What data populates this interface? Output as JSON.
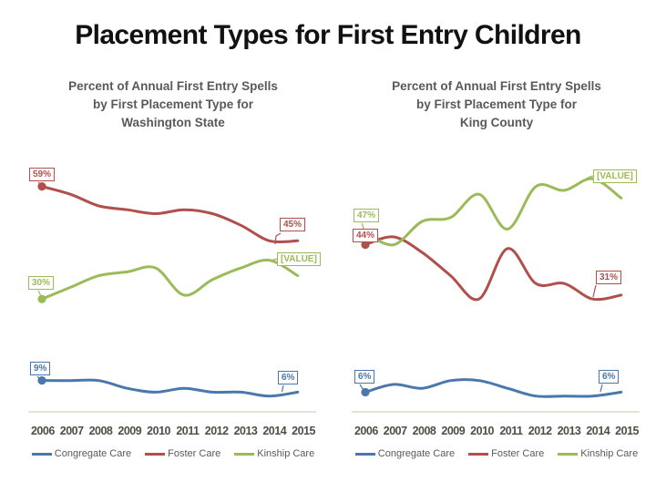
{
  "slide_title": "Placement Types for First Entry Children",
  "colors": {
    "congregate": "#4a77ac",
    "foster": "#b04f4b",
    "kinship": "#9bbb59",
    "axis_line": "#cac4b3",
    "title_text": "#111111",
    "chart_title_text": "#595959"
  },
  "chart_data": [
    {
      "type": "line",
      "title": "Percent of Annual First Entry Spells by First Placement Type for Washington State",
      "title_lines": [
        "Percent of Annual First Entry Spells",
        "by First Placement Type for",
        "Washington State"
      ],
      "categories": [
        "2006",
        "2007",
        "2008",
        "2009",
        "2010",
        "2011",
        "2012",
        "2013",
        "2014",
        "2015"
      ],
      "ylim": [
        0,
        64
      ],
      "grid": false,
      "legend_position": "bottom",
      "series": [
        {
          "name": "Congregate Care",
          "key": "congregate",
          "values": [
            9,
            9,
            9,
            7,
            6,
            7,
            6,
            6,
            5,
            6
          ]
        },
        {
          "name": "Foster Care",
          "key": "foster",
          "values": [
            59,
            57,
            54,
            53,
            52,
            53,
            52,
            49,
            45,
            45
          ]
        },
        {
          "name": "Kinship Care",
          "key": "kinship",
          "values": [
            30,
            33,
            36,
            37,
            38,
            31,
            35,
            38,
            40,
            36
          ]
        }
      ],
      "point_labels": [
        {
          "text": "59%",
          "series": "foster",
          "year": "2006"
        },
        {
          "text": "45%",
          "series": "foster",
          "year": "2015"
        },
        {
          "text": "[VALUE]",
          "series": "kinship",
          "year": "2014"
        },
        {
          "text": "30%",
          "series": "kinship",
          "year": "2006"
        },
        {
          "text": "9%",
          "series": "congregate",
          "year": "2006"
        },
        {
          "text": "6%",
          "series": "congregate",
          "year": "2015"
        }
      ]
    },
    {
      "type": "line",
      "title": "Percent of Annual First Entry Spells by First Placement Type for King County",
      "title_lines": [
        "Percent of Annual First Entry Spells",
        "by First Placement Type for",
        "King County"
      ],
      "categories": [
        "2006",
        "2007",
        "2008",
        "2009",
        "2010",
        "2011",
        "2012",
        "2013",
        "2014",
        "2015"
      ],
      "ylim": [
        0,
        64
      ],
      "grid": false,
      "legend_position": "bottom",
      "series": [
        {
          "name": "Congregate Care",
          "key": "congregate",
          "values": [
            6,
            8,
            7,
            9,
            9,
            7,
            5,
            5,
            5,
            6
          ]
        },
        {
          "name": "Foster Care",
          "key": "foster",
          "values": [
            44,
            46,
            42,
            36,
            30,
            43,
            34,
            34,
            30,
            31
          ]
        },
        {
          "name": "Kinship Care",
          "key": "kinship",
          "values": [
            47,
            44,
            50,
            51,
            57,
            48,
            59,
            58,
            61,
            56
          ]
        }
      ],
      "point_labels": [
        {
          "text": "47%",
          "series": "kinship",
          "year": "2006"
        },
        {
          "text": "44%",
          "series": "foster",
          "year": "2006"
        },
        {
          "text": "[VALUE]",
          "series": "kinship",
          "year": "2014"
        },
        {
          "text": "31%",
          "series": "foster",
          "year": "2015"
        },
        {
          "text": "6%",
          "series": "congregate",
          "year": "2006"
        },
        {
          "text": "6%",
          "series": "congregate",
          "year": "2015"
        }
      ]
    }
  ]
}
